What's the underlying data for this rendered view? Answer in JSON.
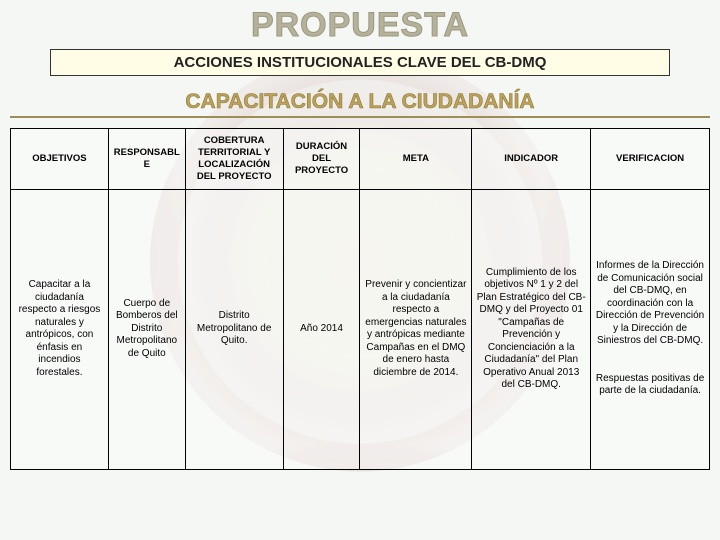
{
  "title": "PROPUESTA",
  "subtitle": "ACCIONES INSTITUCIONALES CLAVE DEL CB-DMQ",
  "section_heading": "CAPACITACIÓN A LA CIUDADANÍA",
  "colors": {
    "title_fill": "#b5b19a",
    "title_stroke": "#9c9880",
    "subtitle_bg": "#fffde5",
    "subtitle_border": "#333333",
    "section_fill": "#bda15a",
    "section_stroke": "#8a7a3a",
    "section_underline": "#9c8e55",
    "table_border": "#000000",
    "page_bg": "#f5f7f4"
  },
  "table": {
    "columns": [
      "OBJETIVOS",
      "RESPONSABLE",
      "COBERTURA TERRITORIAL Y LOCALIZACIÓN DEL PROYECTO",
      "DURACIÓN DEL PROYECTO",
      "META",
      "INDICADOR",
      "VERIFICACION"
    ],
    "col_widths_pct": [
      14,
      11,
      14,
      11,
      16,
      17,
      17
    ],
    "rows": [
      [
        "Capacitar a la ciudadanía respecto a riesgos naturales y antrópicos, con énfasis en incendios forestales.",
        "Cuerpo de Bomberos del Distrito Metropolitano de Quito",
        "Distrito Metropolitano de Quito.",
        "Año 2014",
        "Prevenir y concientizar a la ciudadanía respecto a emergencias naturales y antrópicas mediante Campañas en el DMQ de enero hasta diciembre de 2014.",
        "Cumplimiento de los objetivos Nº 1 y 2 del Plan Estratégico del CB-DMQ y del Proyecto 01 \"Campañas de Prevención y Concienciación a la Ciudadanía\" del Plan Operativo Anual 2013 del CB-DMQ.",
        "Informes de la Dirección de Comunicación social del CB-DMQ, en coordinación con la Dirección de Prevención y la Dirección de Siniestros del CB-DMQ.\n\nRespuestas positivas de parte de la ciudadanía."
      ]
    ]
  }
}
